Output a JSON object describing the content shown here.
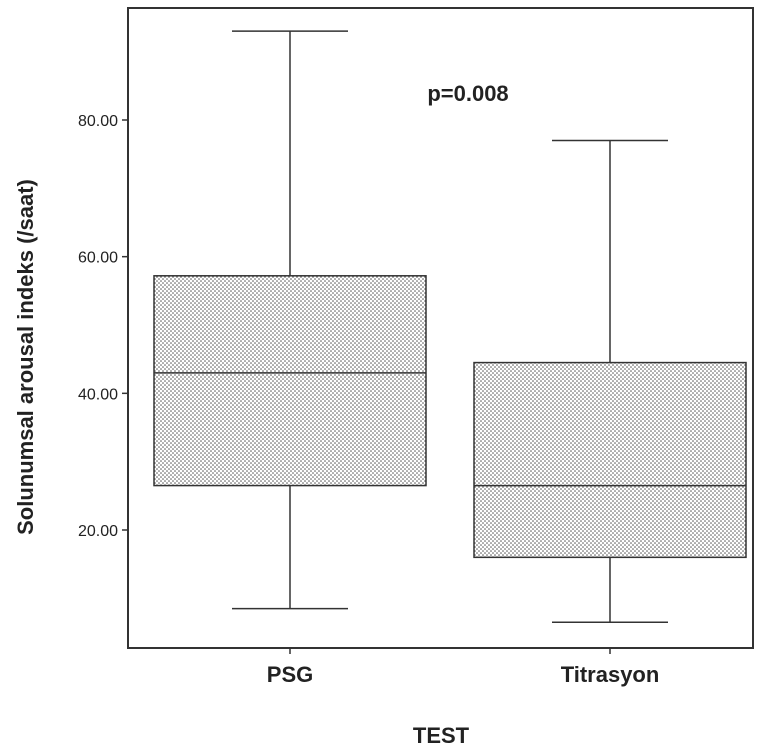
{
  "chart_data": {
    "type": "box",
    "xlabel": "TEST",
    "ylabel": "Solunumsal arousal indeks (/saat)",
    "annotation": "p=0.008",
    "y_ticks": [
      20,
      40,
      60,
      80
    ],
    "y_tick_labels": [
      "20.00",
      "40.00",
      "60.00",
      "80.00"
    ],
    "ylim": [
      4,
      97
    ],
    "grid": false,
    "fill_pattern": "dotted",
    "categories": [
      "PSG",
      "Titrasyon"
    ],
    "boxes": [
      {
        "category": "PSG",
        "min": 8.5,
        "q1": 26.5,
        "median": 43,
        "q3": 57.2,
        "max": 93
      },
      {
        "category": "Titrasyon",
        "min": 6.5,
        "q1": 16,
        "median": 26.5,
        "q3": 44.5,
        "max": 77
      }
    ]
  }
}
